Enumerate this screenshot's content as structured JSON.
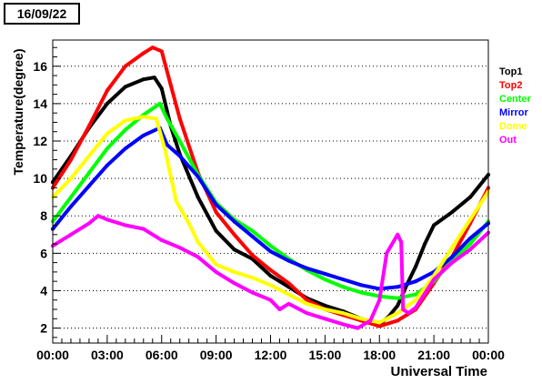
{
  "chart_data": {
    "type": "line",
    "title": "16/09/22",
    "xlabel": "Universal Time",
    "ylabel": "Temperature(degree)",
    "xlim": [
      0,
      24
    ],
    "ylim": [
      1.2,
      17.4
    ],
    "x_ticks": [
      {
        "value": 0,
        "label": "00:00"
      },
      {
        "value": 3,
        "label": "03:00"
      },
      {
        "value": 6,
        "label": "06:00"
      },
      {
        "value": 9,
        "label": "09:00"
      },
      {
        "value": 12,
        "label": "12:00"
      },
      {
        "value": 15,
        "label": "15:00"
      },
      {
        "value": 18,
        "label": "18:00"
      },
      {
        "value": 21,
        "label": "21:00"
      },
      {
        "value": 24,
        "label": "00:00"
      }
    ],
    "y_ticks": [
      {
        "value": 2,
        "label": "2"
      },
      {
        "value": 4,
        "label": "4"
      },
      {
        "value": 6,
        "label": "6"
      },
      {
        "value": 8,
        "label": "8"
      },
      {
        "value": 10,
        "label": "10"
      },
      {
        "value": 12,
        "label": "12"
      },
      {
        "value": 14,
        "label": "14"
      },
      {
        "value": 16,
        "label": "16"
      }
    ],
    "grid": "horizontal-dotted",
    "legend_position": "right",
    "series": [
      {
        "name": "Top1",
        "color": "#000000",
        "x": [
          0,
          1,
          2,
          3,
          4,
          5,
          5.6,
          6,
          6.5,
          7,
          8,
          9,
          10,
          11,
          12,
          13,
          14,
          15,
          16,
          17,
          18,
          18.5,
          19,
          19.5,
          20,
          20.5,
          21,
          22,
          23,
          24
        ],
        "y": [
          9.8,
          11.2,
          12.7,
          14.0,
          14.9,
          15.3,
          15.4,
          14.8,
          12.8,
          11.3,
          9.0,
          7.2,
          6.2,
          5.7,
          4.8,
          4.2,
          3.6,
          3.2,
          2.9,
          2.5,
          2.2,
          2.6,
          3.2,
          4.3,
          5.3,
          6.5,
          7.5,
          8.2,
          9.0,
          10.2
        ]
      },
      {
        "name": "Top2",
        "color": "#ff0000",
        "x": [
          0,
          1,
          2,
          3,
          4,
          5,
          5.5,
          6,
          6.5,
          7,
          8,
          9,
          10,
          11,
          12,
          13,
          14,
          15,
          16,
          17,
          18,
          19,
          20,
          21,
          22,
          23,
          24
        ],
        "y": [
          9.5,
          11.0,
          12.8,
          14.7,
          16.0,
          16.7,
          17.0,
          16.8,
          15.0,
          13.2,
          10.3,
          8.2,
          7.0,
          5.9,
          5.1,
          4.4,
          3.5,
          3.0,
          2.7,
          2.4,
          2.1,
          2.4,
          3.0,
          4.4,
          5.8,
          7.6,
          9.5
        ]
      },
      {
        "name": "Center",
        "color": "#00ff00",
        "x": [
          0,
          1,
          2,
          3,
          4,
          5,
          5.9,
          6.3,
          7,
          8,
          9,
          10,
          11,
          12,
          13,
          14,
          15,
          16,
          17,
          18,
          19,
          20,
          21,
          22,
          23,
          24
        ],
        "y": [
          7.7,
          9.0,
          10.3,
          11.6,
          12.6,
          13.4,
          14.0,
          13.2,
          12.0,
          10.2,
          8.7,
          7.8,
          7.2,
          6.4,
          5.7,
          5.1,
          4.6,
          4.2,
          3.9,
          3.7,
          3.6,
          3.8,
          4.5,
          5.6,
          6.5,
          7.7
        ]
      },
      {
        "name": "Mirror",
        "color": "#0000ff",
        "x": [
          0,
          1,
          2,
          3,
          4,
          5,
          5.9,
          6.3,
          7,
          8,
          9,
          10,
          11,
          12,
          13,
          14,
          15,
          16,
          17,
          18,
          19,
          20,
          21,
          22,
          23,
          24
        ],
        "y": [
          7.3,
          8.5,
          9.6,
          10.7,
          11.6,
          12.3,
          12.7,
          11.8,
          11.2,
          10.1,
          8.6,
          7.7,
          6.9,
          6.1,
          5.6,
          5.2,
          4.9,
          4.6,
          4.3,
          4.1,
          4.2,
          4.5,
          5.0,
          5.8,
          6.8,
          7.6
        ]
      },
      {
        "name": "Dome",
        "color": "#ffff00",
        "x": [
          0,
          1,
          2,
          3,
          4,
          5,
          5.7,
          6.2,
          6.8,
          7.5,
          8,
          9,
          10,
          11,
          12,
          13,
          14,
          15,
          16,
          17,
          18,
          19,
          20,
          21,
          22,
          23,
          24
        ],
        "y": [
          9.0,
          10.0,
          11.2,
          12.4,
          13.1,
          13.3,
          13.2,
          11.5,
          8.8,
          7.6,
          6.6,
          5.4,
          5.0,
          4.7,
          4.3,
          3.8,
          3.3,
          3.0,
          2.8,
          2.5,
          2.3,
          2.8,
          3.5,
          4.8,
          6.3,
          7.8,
          9.3
        ]
      },
      {
        "name": "Out",
        "color": "#ff00ff",
        "x": [
          0,
          1,
          2,
          2.5,
          3,
          4,
          5,
          6,
          7,
          8,
          9,
          10,
          11,
          12,
          12.5,
          13,
          14,
          15,
          16,
          16.8,
          17.5,
          18,
          18.4,
          19,
          19.2,
          19.3,
          19.6,
          20,
          21,
          22,
          23,
          24
        ],
        "y": [
          6.4,
          7.0,
          7.6,
          8.0,
          7.8,
          7.5,
          7.3,
          6.7,
          6.3,
          5.8,
          5.0,
          4.4,
          3.9,
          3.5,
          3.0,
          3.3,
          2.8,
          2.5,
          2.2,
          2.0,
          2.4,
          3.5,
          6.0,
          7.0,
          6.6,
          3.0,
          2.8,
          3.1,
          4.6,
          5.5,
          6.2,
          7.1
        ]
      }
    ]
  }
}
